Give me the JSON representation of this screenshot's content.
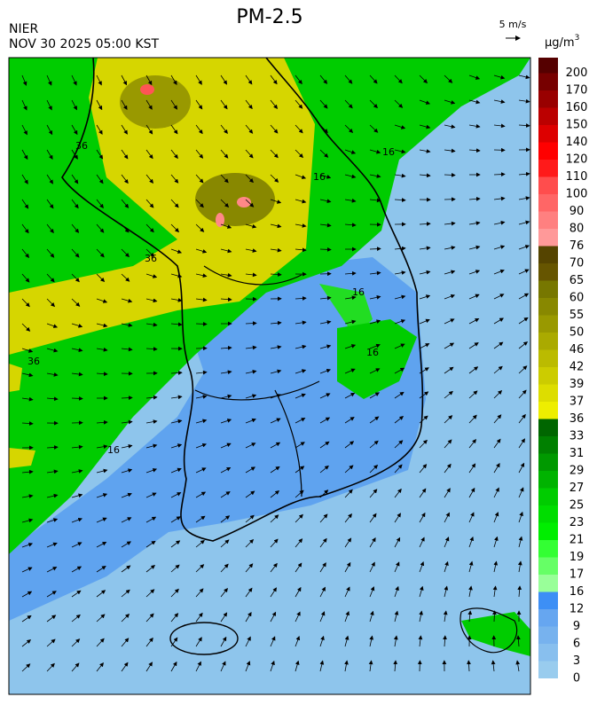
{
  "header": {
    "title": "PM-2.5",
    "agency": "NIER",
    "timestamp": "NOV 30 2025 05:00 KST",
    "wind_scale": "5 m/s"
  },
  "legend": {
    "unit_base": "μg/m",
    "unit_exp": "3",
    "levels": [
      0,
      3,
      6,
      9,
      12,
      16,
      17,
      19,
      21,
      23,
      25,
      27,
      29,
      31,
      33,
      36,
      37,
      39,
      42,
      46,
      50,
      55,
      60,
      65,
      70,
      76,
      80,
      90,
      100,
      110,
      120,
      140,
      150,
      160,
      170,
      200
    ],
    "colors": [
      "#99ccee",
      "#88bfee",
      "#77b2ee",
      "#66a6f0",
      "#3d8ff5",
      "#99ff99",
      "#66ff66",
      "#33ff33",
      "#00ee00",
      "#00dd00",
      "#00cc00",
      "#00b300",
      "#009900",
      "#008000",
      "#006600",
      "#eeee00",
      "#dddd00",
      "#cccc00",
      "#bbbb00",
      "#aaaa00",
      "#999900",
      "#888800",
      "#777700",
      "#665500",
      "#554400",
      "#ff9999",
      "#ff8080",
      "#ff6666",
      "#ff4d4d",
      "#ff1a1a",
      "#ff0000",
      "#dd0000",
      "#bb0000",
      "#990000",
      "#770000",
      "#550000"
    ]
  },
  "map": {
    "contour_labels": [
      "36",
      "36",
      "36",
      "16",
      "16",
      "16",
      "16",
      "16"
    ]
  }
}
